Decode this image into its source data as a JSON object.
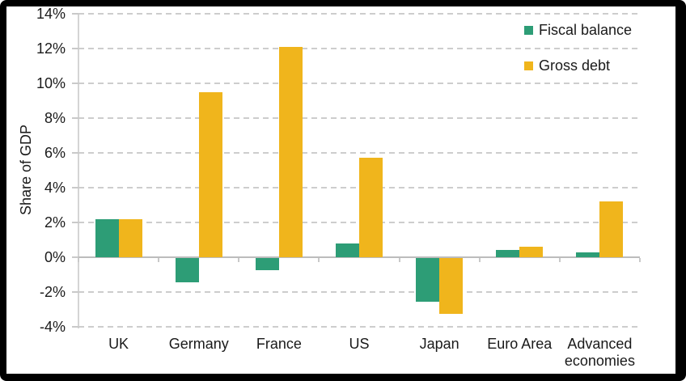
{
  "frame": {
    "border_color": "#000000",
    "background_color": "#ffffff"
  },
  "chart_data": {
    "type": "bar",
    "title": "",
    "ylabel": "Share of GDP",
    "xlabel": "",
    "categories": [
      "UK",
      "Germany",
      "France",
      "US",
      "Japan",
      "Euro Area",
      "Advanced economies"
    ],
    "series": [
      {
        "name": "Fiscal balance",
        "color": "#2d9d76",
        "values": [
          2.2,
          -1.4,
          -0.7,
          0.8,
          -2.5,
          0.4,
          0.3
        ]
      },
      {
        "name": "Gross debt",
        "color": "#f0b51c",
        "values": [
          2.2,
          9.5,
          12.1,
          5.7,
          -3.2,
          0.6,
          3.2
        ]
      }
    ],
    "ylim": [
      -4,
      14
    ],
    "ytick_step": 2,
    "ytick_suffix": "%",
    "grid": "horizontal-dashed",
    "zero_line": "solid",
    "legend_position": "top-right"
  },
  "colors": {
    "gridline": "#cdcdcd",
    "zero_line": "#bcbcbc",
    "axis_line": "#d4d4d4",
    "text": "#1a1a1a"
  }
}
